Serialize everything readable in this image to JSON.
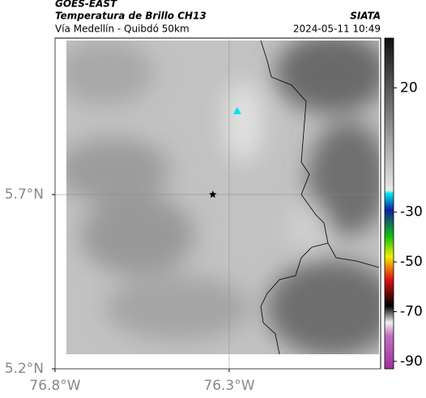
{
  "header": {
    "title": "GOES-EAST",
    "subtitle": "Temperatura de Brillo CH13",
    "location": "Vía Medellín - Quibdó 50km",
    "source": "SIATA",
    "datetime": "2024-05-11 10:49"
  },
  "map": {
    "xlim": [
      -76.8,
      -75.865
    ],
    "ylim": [
      5.2,
      6.149
    ],
    "xticks": [
      {
        "value": -76.8,
        "label": "76.8°W"
      },
      {
        "value": -76.3,
        "label": "76.3°W"
      }
    ],
    "yticks": [
      {
        "value": 5.2,
        "label": "5.2°N"
      },
      {
        "value": 5.7,
        "label": "5.7°N"
      }
    ],
    "markers": [
      {
        "lon": -76.347,
        "lat": 5.7,
        "color": "#000000"
      },
      {
        "lon": -76.277,
        "lat": 5.94,
        "color": "#00e5ee"
      }
    ]
  },
  "colorbar": {
    "lim": [
      -93,
      40
    ],
    "ticks": [
      20,
      -30,
      -50,
      -70,
      -90
    ]
  }
}
